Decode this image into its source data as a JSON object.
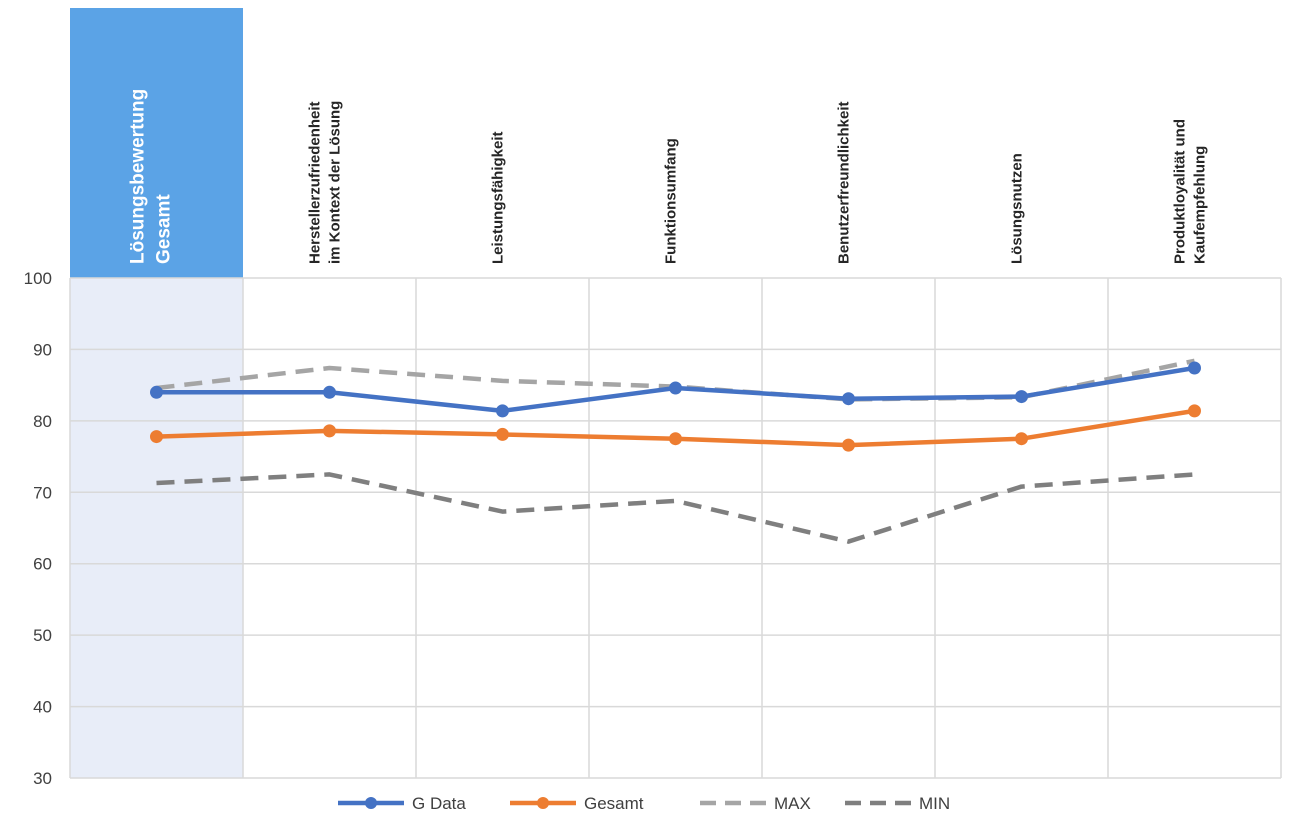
{
  "chart_data": {
    "type": "line",
    "categories": [
      [
        "Lösungsbewertung",
        "Gesamt"
      ],
      [
        "Herstellerzufriedenheit",
        "im Kontext der Lösung"
      ],
      [
        "Leistungsfähigkeit"
      ],
      [
        "Funktionsumfang"
      ],
      [
        "Benutzerfreundlichkeit"
      ],
      [
        "Lösungsnutzen"
      ],
      [
        "Produktloyalität und",
        "Kaufempfehlung"
      ]
    ],
    "highlight_category": 0,
    "ylim": [
      30,
      100
    ],
    "yticks": [
      30,
      40,
      50,
      60,
      70,
      80,
      90,
      100
    ],
    "grid": true,
    "legend_position": "bottom",
    "series": [
      {
        "name": "G Data",
        "values": [
          84.0,
          84.0,
          81.4,
          84.6,
          83.1,
          83.4,
          87.4
        ],
        "color": "#4472C4",
        "style": "solid-marker"
      },
      {
        "name": "Gesamt",
        "values": [
          77.8,
          78.6,
          78.1,
          77.5,
          76.6,
          77.5,
          81.4
        ],
        "color": "#ED7D31",
        "style": "solid-marker"
      },
      {
        "name": "MAX",
        "values": [
          84.6,
          87.4,
          85.6,
          84.8,
          83.0,
          83.3,
          88.4
        ],
        "color": "#A5A5A5",
        "style": "dashed"
      },
      {
        "name": "MIN",
        "values": [
          71.3,
          72.5,
          67.3,
          68.8,
          63.1,
          70.8,
          72.5
        ],
        "color": "#7F7F7F",
        "style": "dashed"
      }
    ],
    "colors": {
      "highlight_header": "#5BA3E6",
      "highlight_band": "#E8EDF8",
      "grid": "#D9D9D9"
    }
  }
}
